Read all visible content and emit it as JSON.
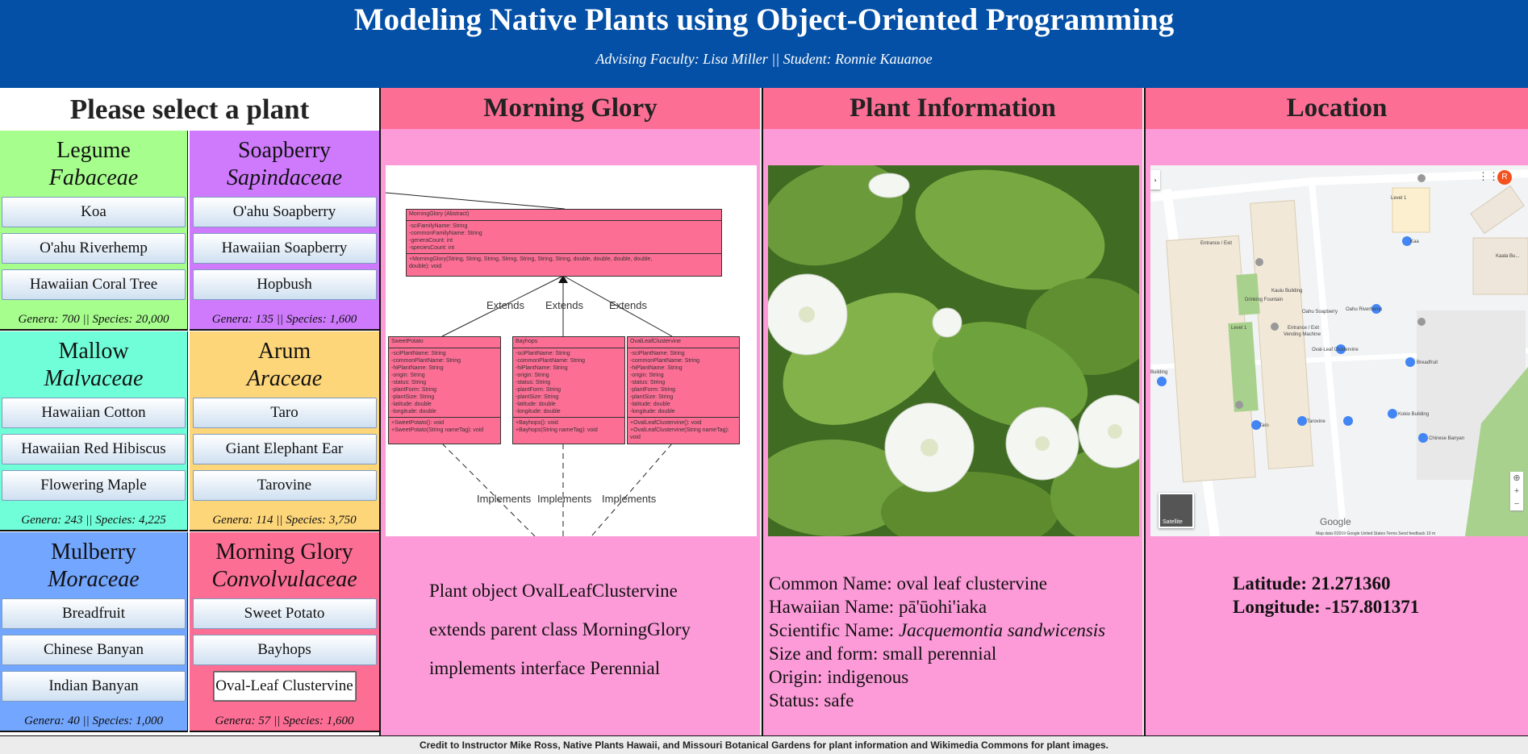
{
  "header": {
    "title": "Modeling Native Plants using Object-Oriented Programming",
    "subtitle": "Advising Faculty: Lisa Miller || Student: Ronnie Kauanoe"
  },
  "selector": {
    "title": "Please select a plant",
    "families": [
      {
        "common": "Legume",
        "scientific": "Fabaceae",
        "color": "#a6fe8d",
        "plants": [
          "Koa",
          "O'ahu Riverhemp",
          "Hawaiian Coral Tree"
        ],
        "stats": "Genera: 700 || Species: 20,000"
      },
      {
        "common": "Soapberry",
        "scientific": "Sapindaceae",
        "color": "#cf7afd",
        "plants": [
          "O'ahu Soapberry",
          "Hawaiian Soapberry",
          "Hopbush"
        ],
        "stats": "Genera: 135 || Species: 1,600"
      },
      {
        "common": "Mallow",
        "scientific": "Malvaceae",
        "color": "#70fed8",
        "plants": [
          "Hawaiian Cotton",
          "Hawaiian Red Hibiscus",
          "Flowering Maple"
        ],
        "stats": "Genera: 243 || Species: 4,225"
      },
      {
        "common": "Arum",
        "scientific": "Araceae",
        "color": "#fed67a",
        "plants": [
          "Taro",
          "Giant Elephant Ear",
          "Tarovine"
        ],
        "stats": "Genera: 114 || Species: 3,750"
      },
      {
        "common": "Mulberry",
        "scientific": "Moraceae",
        "color": "#73a6fe",
        "plants": [
          "Breadfruit",
          "Chinese Banyan",
          "Indian Banyan"
        ],
        "stats": "Genera: 40 || Species: 1,000"
      },
      {
        "common": "Morning Glory",
        "scientific": "Convolvulaceae",
        "color": "#fd6e95",
        "plants": [
          "Sweet Potato",
          "Bayhops",
          "Oval-Leaf Clustervine"
        ],
        "stats": "Genera: 57 || Species: 1,600"
      }
    ],
    "selected_plant": "Oval-Leaf Clustervine"
  },
  "uml_column": {
    "title": "Morning Glory",
    "uml": {
      "parent_name": "MorningGlory (Abstract)",
      "parent_attrs": [
        "-sciFamilyName: String",
        "-commonFamilyName: String",
        "-generaCount: int",
        "-speciesCount: int"
      ],
      "parent_methods": [
        "+MorningGlory(String, String, String, String, String, String, String, double, double, double, double,",
        "double): void"
      ],
      "children": [
        {
          "name": "SweetPotato",
          "attrs": [
            "-sciPlantName: String",
            "-commonPlantName: String",
            "-hiPlantName: String",
            "-origin: String",
            "-status: String",
            "-plantForm: String",
            "-plantSize: String",
            "-latitude: double",
            "-longitude: double"
          ],
          "methods": [
            "+SweetPotato(): void",
            "+SweetPotato(String nameTag): void"
          ]
        },
        {
          "name": "Bayhops",
          "attrs": [
            "-sciPlantName: String",
            "-commonPlantName: String",
            "-hiPlantName: String",
            "-origin: String",
            "-status: String",
            "-plantForm: String",
            "-plantSize: String",
            "-latitude: double",
            "-longitude: double"
          ],
          "methods": [
            "+Bayhops(): void",
            "+Bayhops(String nameTag): void"
          ]
        },
        {
          "name": "OvalLeafClustervine",
          "attrs": [
            "-sciPlantName: String",
            "-commonPlantName: String",
            "-hiPlantName: String",
            "-origin: String",
            "-status: String",
            "-plantForm: String",
            "-plantSize: String",
            "-latitude: double",
            "-longitude: double"
          ],
          "methods": [
            "+OvalLeafClustervine(): void",
            "+OvalLeafClustervine(String nameTag): void"
          ]
        }
      ],
      "extends_label": "Extends",
      "implements_label": "Implements"
    },
    "description": [
      "Plant object OvalLeafClustervine",
      "extends parent class MorningGlory",
      "implements interface Perennial"
    ]
  },
  "info_column": {
    "title": "Plant Information",
    "image_icon": "white-flower-photo",
    "lines": {
      "common_label": "Common Name: ",
      "common_value": "oval leaf clustervine",
      "hawaiian_label": "Hawaiian Name: ",
      "hawaiian_value": "pā'ūohi'iaka",
      "scientific_label": "Scientific Name: ",
      "scientific_value": "Jacquemontia sandwicensis",
      "size_label": "Size and form: ",
      "size_value": "small perennial",
      "origin_label": "Origin: ",
      "origin_value": "indigenous",
      "status_label": "Status: ",
      "status_value": "safe"
    }
  },
  "location_column": {
    "title": "Location",
    "latitude_label": "Latitude: ",
    "latitude": "21.271360",
    "longitude_label": "Longitude: ",
    "longitude": "-157.801371",
    "map": {
      "labels": {
        "level1_a": "Level 1",
        "level1_b": "Level 1",
        "kaa": "Kaa",
        "kaala": "Kaala Bu...",
        "entrance_exit_a": "Entrance / Exit",
        "entrance_exit_b": "Entrance / Exit",
        "vending": "Vending Machine",
        "kauiu": "Kauiu Building",
        "drinking": "Drinking Fountain",
        "oahu_soapberry": "Oahu Soapberry",
        "oahu_riverhemp": "Oahu Riverhemp",
        "ovalleaf": "Oval-Leaf Clustervine",
        "breadfruit": "Breadfruit",
        "building": "Building",
        "taro": "Taro",
        "tarovine": "Tarovine",
        "kokio": "Kokio Building",
        "chinese_banyan": "Chinese Banyan",
        "google": "Google",
        "satellite": "Satellite",
        "footer": "Map data ©2019 Google   United States   Terms   Send feedback   10 m",
        "avatar": "R"
      }
    }
  },
  "footer": {
    "credit": "Credit to Instructor Mike Ross, Native Plants Hawaii, and Missouri Botanical Gardens for plant information and Wikimedia Commons for plant images."
  }
}
